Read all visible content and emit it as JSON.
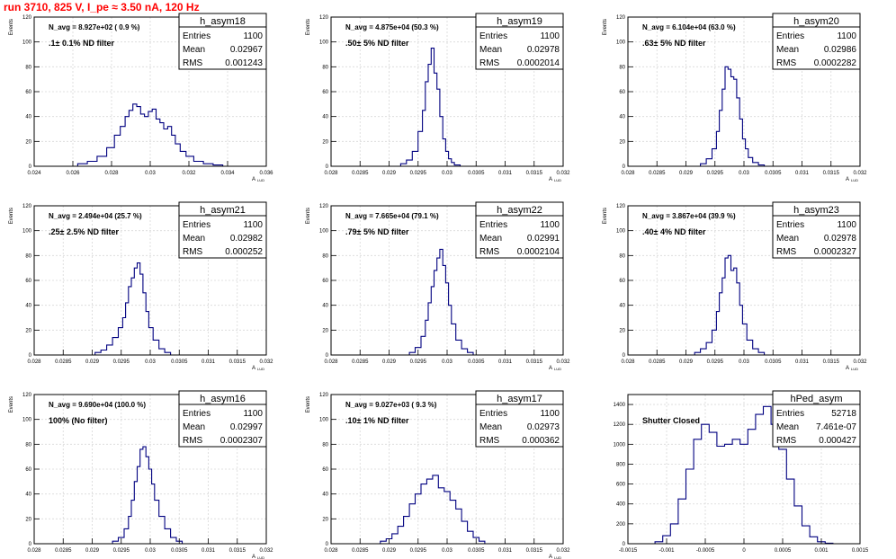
{
  "page": {
    "title": "run 3710,   825 V, I_pe ≈ 3.50 nA, 120 Hz"
  },
  "colors": {
    "hist": "#000080",
    "frame": "#000000",
    "grid": "#d8d8d8",
    "filter_label": "#ff00ff",
    "title": "#ff0000"
  },
  "chart_data": [
    {
      "type": "bar",
      "name": "h_asym18",
      "nlabel": "N_avg = 8.927e+02 ( 0.9 %)",
      "filter": ".1± 0.1% ND filter",
      "entries": "1100",
      "mean": "0.02967",
      "rms": "0.001243",
      "xlabel": "A",
      "xlabel_sub": "LUD",
      "ylabel": "Events",
      "xlim": [
        0.024,
        0.036
      ],
      "ylim": [
        0,
        120
      ],
      "xticks": [
        "0.024",
        "0.026",
        "0.028",
        "0.03",
        "0.032",
        "0.034",
        "0.036"
      ],
      "yticks": [
        "0",
        "20",
        "40",
        "60",
        "80",
        "100",
        "120"
      ],
      "centers": [
        0.0265,
        0.027,
        0.0275,
        0.028,
        0.0283,
        0.0286,
        0.0288,
        0.029,
        0.0292,
        0.0294,
        0.0296,
        0.0298,
        0.03,
        0.0302,
        0.0304,
        0.0306,
        0.0308,
        0.031,
        0.0312,
        0.0314,
        0.0317,
        0.032,
        0.0325,
        0.033,
        0.0335
      ],
      "values": [
        2,
        4,
        8,
        15,
        25,
        32,
        40,
        45,
        50,
        48,
        42,
        40,
        44,
        46,
        38,
        35,
        30,
        32,
        25,
        18,
        12,
        8,
        4,
        2,
        1
      ]
    },
    {
      "type": "bar",
      "name": "h_asym19",
      "nlabel": "N_avg = 4.875e+04 (50.3 %)",
      "filter": ".50± 5% ND filter",
      "entries": "1100",
      "mean": "0.02978",
      "rms": "0.0002014",
      "xlabel": "A",
      "xlabel_sub": "LUD",
      "ylabel": "Events",
      "xlim": [
        0.028,
        0.032
      ],
      "ylim": [
        0,
        120
      ],
      "xticks": [
        "0.028",
        "0.0285",
        "0.029",
        "0.0295",
        "0.03",
        "0.0305",
        "0.031",
        "0.0315",
        "0.032"
      ],
      "yticks": [
        "0",
        "20",
        "40",
        "60",
        "80",
        "100",
        "120"
      ],
      "centers": [
        0.02925,
        0.02935,
        0.02945,
        0.02955,
        0.0296,
        0.02965,
        0.0297,
        0.02975,
        0.0298,
        0.02985,
        0.0299,
        0.02995,
        0.03,
        0.03005,
        0.0301,
        0.03015,
        0.0302
      ],
      "values": [
        2,
        5,
        12,
        28,
        45,
        68,
        82,
        95,
        75,
        62,
        40,
        22,
        12,
        6,
        3,
        1,
        1
      ]
    },
    {
      "type": "bar",
      "name": "h_asym20",
      "nlabel": "N_avg = 6.104e+04 (63.0 %)",
      "filter": ".63± 5% ND filter",
      "entries": "1100",
      "mean": "0.02986",
      "rms": "0.0002282",
      "xlabel": "A",
      "xlabel_sub": "LUD",
      "ylabel": "Events",
      "xlim": [
        0.028,
        0.032
      ],
      "ylim": [
        0,
        120
      ],
      "xticks": [
        "0.028",
        "0.0285",
        "0.029",
        "0.0295",
        "0.03",
        "0.0305",
        "0.031",
        "0.0315",
        "0.032"
      ],
      "yticks": [
        "0",
        "20",
        "40",
        "60",
        "80",
        "100",
        "120"
      ],
      "centers": [
        0.0293,
        0.0294,
        0.0295,
        0.02955,
        0.0296,
        0.02965,
        0.0297,
        0.02975,
        0.0298,
        0.02985,
        0.0299,
        0.02995,
        0.03,
        0.03005,
        0.0301,
        0.0302,
        0.0303
      ],
      "values": [
        2,
        6,
        14,
        28,
        45,
        62,
        80,
        78,
        72,
        70,
        55,
        38,
        22,
        14,
        7,
        3,
        1
      ]
    },
    {
      "type": "bar",
      "name": "h_asym21",
      "nlabel": "N_avg = 2.494e+04 (25.7 %)",
      "filter": ".25± 2.5% ND filter",
      "entries": "1100",
      "mean": "0.02982",
      "rms": "0.000252",
      "xlabel": "A",
      "xlabel_sub": "LUD",
      "ylabel": "Events",
      "xlim": [
        0.028,
        0.032
      ],
      "ylim": [
        0,
        120
      ],
      "xticks": [
        "0.028",
        "0.0285",
        "0.029",
        "0.0295",
        "0.03",
        "0.0305",
        "0.031",
        "0.0315",
        "0.032"
      ],
      "yticks": [
        "0",
        "20",
        "40",
        "60",
        "80",
        "100",
        "120"
      ],
      "centers": [
        0.0291,
        0.0292,
        0.0293,
        0.0294,
        0.0295,
        0.02955,
        0.0296,
        0.02965,
        0.0297,
        0.02975,
        0.0298,
        0.02985,
        0.0299,
        0.02995,
        0.03,
        0.0301,
        0.0302,
        0.0303
      ],
      "values": [
        2,
        4,
        8,
        14,
        22,
        30,
        42,
        55,
        62,
        70,
        74,
        65,
        50,
        35,
        22,
        12,
        5,
        2
      ]
    },
    {
      "type": "bar",
      "name": "h_asym22",
      "nlabel": "N_avg = 7.665e+04 (79.1 %)",
      "filter": ".79± 5% ND filter",
      "entries": "1100",
      "mean": "0.02991",
      "rms": "0.0002104",
      "xlabel": "A",
      "xlabel_sub": "LUD",
      "ylabel": "Events",
      "xlim": [
        0.028,
        0.032
      ],
      "ylim": [
        0,
        120
      ],
      "xticks": [
        "0.028",
        "0.0285",
        "0.029",
        "0.0295",
        "0.03",
        "0.0305",
        "0.031",
        "0.0315",
        "0.032"
      ],
      "yticks": [
        "0",
        "20",
        "40",
        "60",
        "80",
        "100",
        "120"
      ],
      "centers": [
        0.0294,
        0.0295,
        0.0296,
        0.02965,
        0.0297,
        0.02975,
        0.0298,
        0.02985,
        0.0299,
        0.02995,
        0.03,
        0.03005,
        0.0301,
        0.0302,
        0.0303,
        0.0304
      ],
      "values": [
        2,
        6,
        15,
        28,
        42,
        55,
        68,
        78,
        85,
        72,
        58,
        40,
        25,
        12,
        5,
        2
      ]
    },
    {
      "type": "bar",
      "name": "h_asym23",
      "nlabel": "N_avg = 3.867e+04 (39.9 %)",
      "filter": ".40± 4% ND filter",
      "entries": "1100",
      "mean": "0.02978",
      "rms": "0.0002327",
      "xlabel": "A",
      "xlabel_sub": "LUD",
      "ylabel": "Events",
      "xlim": [
        0.028,
        0.032
      ],
      "ylim": [
        0,
        120
      ],
      "xticks": [
        "0.028",
        "0.0285",
        "0.029",
        "0.0295",
        "0.03",
        "0.0305",
        "0.031",
        "0.0315",
        "0.032"
      ],
      "yticks": [
        "0",
        "20",
        "40",
        "60",
        "80",
        "100",
        "120"
      ],
      "centers": [
        0.0292,
        0.0293,
        0.0294,
        0.0295,
        0.02955,
        0.0296,
        0.02965,
        0.0297,
        0.02975,
        0.0298,
        0.02985,
        0.0299,
        0.02995,
        0.03,
        0.0301,
        0.0302,
        0.0303
      ],
      "values": [
        2,
        5,
        10,
        20,
        35,
        50,
        62,
        78,
        80,
        68,
        70,
        58,
        40,
        25,
        12,
        5,
        2
      ]
    },
    {
      "type": "bar",
      "name": "h_asym16",
      "nlabel": "N_avg = 9.690e+04 (100.0 %)",
      "filter": "100% (No filter)",
      "entries": "1100",
      "mean": "0.02997",
      "rms": "0.0002307",
      "xlabel": "A",
      "xlabel_sub": "LUD",
      "ylabel": "Events",
      "xlim": [
        0.028,
        0.032
      ],
      "ylim": [
        0,
        120
      ],
      "xticks": [
        "0.028",
        "0.0285",
        "0.029",
        "0.0295",
        "0.03",
        "0.0305",
        "0.031",
        "0.0315",
        "0.032"
      ],
      "yticks": [
        "0",
        "20",
        "40",
        "60",
        "80",
        "100",
        "120"
      ],
      "centers": [
        0.0294,
        0.0295,
        0.0296,
        0.02965,
        0.0297,
        0.02975,
        0.0298,
        0.02985,
        0.0299,
        0.02995,
        0.03,
        0.03005,
        0.0301,
        0.0302,
        0.0303,
        0.0304,
        0.0305
      ],
      "values": [
        2,
        5,
        12,
        22,
        35,
        50,
        62,
        76,
        78,
        70,
        60,
        48,
        35,
        22,
        12,
        5,
        2
      ]
    },
    {
      "type": "bar",
      "name": "h_asym17",
      "nlabel": "N_avg = 9.027e+03 ( 9.3 %)",
      "filter": ".10± 1% ND filter",
      "entries": "1100",
      "mean": "0.02973",
      "rms": "0.000362",
      "xlabel": "A",
      "xlabel_sub": "LUD",
      "ylabel": "Events",
      "xlim": [
        0.028,
        0.032
      ],
      "ylim": [
        0,
        120
      ],
      "xticks": [
        "0.028",
        "0.0285",
        "0.029",
        "0.0295",
        "0.03",
        "0.0305",
        "0.031",
        "0.0315",
        "0.032"
      ],
      "yticks": [
        "0",
        "20",
        "40",
        "60",
        "80",
        "100",
        "120"
      ],
      "centers": [
        0.0289,
        0.029,
        0.0291,
        0.0292,
        0.0293,
        0.0294,
        0.0295,
        0.0296,
        0.0297,
        0.0298,
        0.0299,
        0.03,
        0.0301,
        0.0302,
        0.0303,
        0.0304,
        0.0305,
        0.0306
      ],
      "values": [
        2,
        4,
        8,
        14,
        22,
        32,
        40,
        48,
        52,
        55,
        45,
        42,
        35,
        28,
        18,
        10,
        5,
        2
      ]
    },
    {
      "type": "bar",
      "name": "hPed_asym",
      "nlabel": "",
      "filter": "Shutter Closed",
      "entries": "52718",
      "mean": "7.461e-07",
      "rms": "0.000427",
      "xlabel": "",
      "xlabel_sub": "",
      "ylabel": "",
      "xlim": [
        -0.0015,
        0.0015
      ],
      "ylim": [
        0,
        1500
      ],
      "xticks": [
        "-0.0015",
        "-0.001",
        "-0.0005",
        "0",
        "0.0005",
        "0.001",
        "0.0015"
      ],
      "yticks": [
        "0",
        "200",
        "400",
        "600",
        "800",
        "1000",
        "1200",
        "1400"
      ],
      "centers": [
        -0.0011,
        -0.001,
        -0.0009,
        -0.0008,
        -0.0007,
        -0.0006,
        -0.0005,
        -0.0004,
        -0.0003,
        -0.0002,
        -0.0001,
        0.0,
        0.0001,
        0.0002,
        0.0003,
        0.0004,
        0.0005,
        0.0006,
        0.0007,
        0.0008,
        0.0009,
        0.001,
        0.0011
      ],
      "values": [
        20,
        80,
        200,
        450,
        750,
        1050,
        1200,
        1120,
        980,
        1000,
        1050,
        1000,
        1150,
        1300,
        1380,
        1200,
        950,
        650,
        380,
        180,
        70,
        20,
        5
      ]
    }
  ]
}
